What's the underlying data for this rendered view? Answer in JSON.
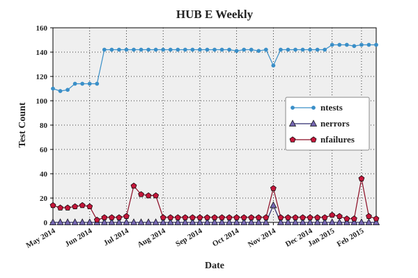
{
  "chart_data": {
    "type": "line",
    "title": "HUB E Weekly",
    "x_label": "Date",
    "y_label": "Test Count",
    "categories": [
      "May 2014",
      null,
      null,
      null,
      null,
      "Jun 2014",
      null,
      null,
      null,
      null,
      "Jul 2014",
      null,
      null,
      null,
      null,
      "Aug 2014",
      null,
      null,
      null,
      null,
      "Sep 2014",
      null,
      null,
      null,
      null,
      "Oct 2014",
      null,
      null,
      null,
      null,
      "Nov 2014",
      null,
      null,
      null,
      null,
      "Dec 2014",
      null,
      null,
      "Jan 2015",
      null,
      null,
      null,
      "Feb 2015",
      null,
      null
    ],
    "series": [
      {
        "name": "ntests",
        "color": "#3a8fc8",
        "line_color": "#3a8fc8",
        "marker": "circle",
        "values": [
          110,
          108,
          109,
          114,
          114,
          114,
          114,
          142,
          142,
          142,
          142,
          142,
          142,
          142,
          142,
          142,
          142,
          142,
          142,
          142,
          142,
          142,
          142,
          142,
          142,
          141,
          142,
          142,
          141,
          142,
          129,
          142,
          142,
          142,
          142,
          142,
          142,
          142,
          146,
          146,
          146,
          145,
          146,
          146,
          146
        ]
      },
      {
        "name": "nerrors",
        "color": "#7466b0",
        "line_color": "#2c2a6e",
        "marker": "triangle",
        "values": [
          0,
          0,
          0,
          0,
          0,
          0,
          0,
          0,
          0,
          0,
          0,
          0,
          0,
          0,
          0,
          0,
          0,
          0,
          0,
          0,
          0,
          0,
          0,
          0,
          0,
          0,
          0,
          0,
          0,
          0,
          14,
          0,
          0,
          0,
          0,
          0,
          0,
          0,
          0,
          0,
          0,
          0,
          0,
          0,
          0
        ]
      },
      {
        "name": "nfailures",
        "color": "#c4163a",
        "line_color": "#8b0a22",
        "marker": "pentagon",
        "values": [
          14,
          12,
          12,
          13,
          14,
          13,
          2,
          4,
          4,
          4,
          5,
          30,
          23,
          22,
          22,
          4,
          4,
          4,
          4,
          4,
          4,
          4,
          4,
          4,
          4,
          4,
          4,
          4,
          4,
          4,
          28,
          4,
          4,
          4,
          4,
          4,
          4,
          4,
          6,
          5,
          3,
          3,
          36,
          5,
          3
        ]
      }
    ],
    "ylim": [
      0,
      160
    ],
    "yticks": [
      0,
      20,
      40,
      60,
      80,
      100,
      120,
      140,
      160
    ],
    "grid": true,
    "legend": "upper right"
  }
}
